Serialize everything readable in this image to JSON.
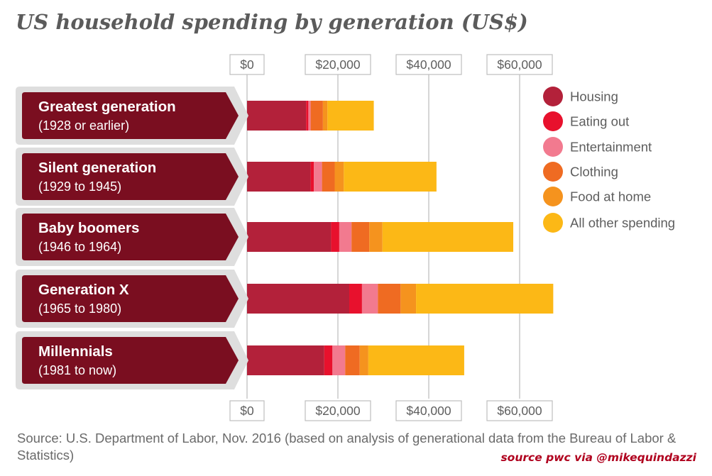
{
  "chart_data": {
    "type": "bar",
    "orientation": "horizontal",
    "stacked": true,
    "title": "US household spending by generation (US$)",
    "categories": [
      {
        "name": "Greatest generation",
        "sub": "(1928 or earlier)"
      },
      {
        "name": "Silent generation",
        "sub": "(1929 to 1945)"
      },
      {
        "name": "Baby boomers",
        "sub": "(1946 to 1964)"
      },
      {
        "name": "Generation X",
        "sub": "(1965 to 1980)"
      },
      {
        "name": "Millennials",
        "sub": "(1981 to now)"
      }
    ],
    "series": [
      {
        "name": "Housing",
        "color": "#b3213a",
        "values": [
          13000,
          14000,
          18500,
          22500,
          17000
        ]
      },
      {
        "name": "Eating out",
        "color": "#e8112d",
        "values": [
          500,
          700,
          1800,
          2800,
          1800
        ]
      },
      {
        "name": "Entertainment",
        "color": "#f27a8f",
        "values": [
          500,
          1800,
          2700,
          3500,
          2800
        ]
      },
      {
        "name": "Clothing",
        "color": "#ef6b22",
        "values": [
          2700,
          2800,
          3900,
          5000,
          3200
        ]
      },
      {
        "name": "Food at home",
        "color": "#f5931e",
        "values": [
          1000,
          2000,
          2900,
          3400,
          1900
        ]
      },
      {
        "name": "All other spending",
        "color": "#fcb816",
        "values": [
          10200,
          20400,
          28800,
          30200,
          21100
        ]
      }
    ],
    "x_ticks": [
      "$0",
      "$20,000",
      "$40,000",
      "$60,000"
    ],
    "x_tick_values": [
      0,
      20000,
      40000,
      60000
    ],
    "xlim": [
      0,
      70000
    ],
    "grid": true,
    "legend_position": "right"
  },
  "source": "Source: U.S. Department of Labor, Nov. 2016 (based on analysis of generational data from the Bureau of Labor & Statistics)",
  "credit": "source pwc via @mikequindazzi"
}
